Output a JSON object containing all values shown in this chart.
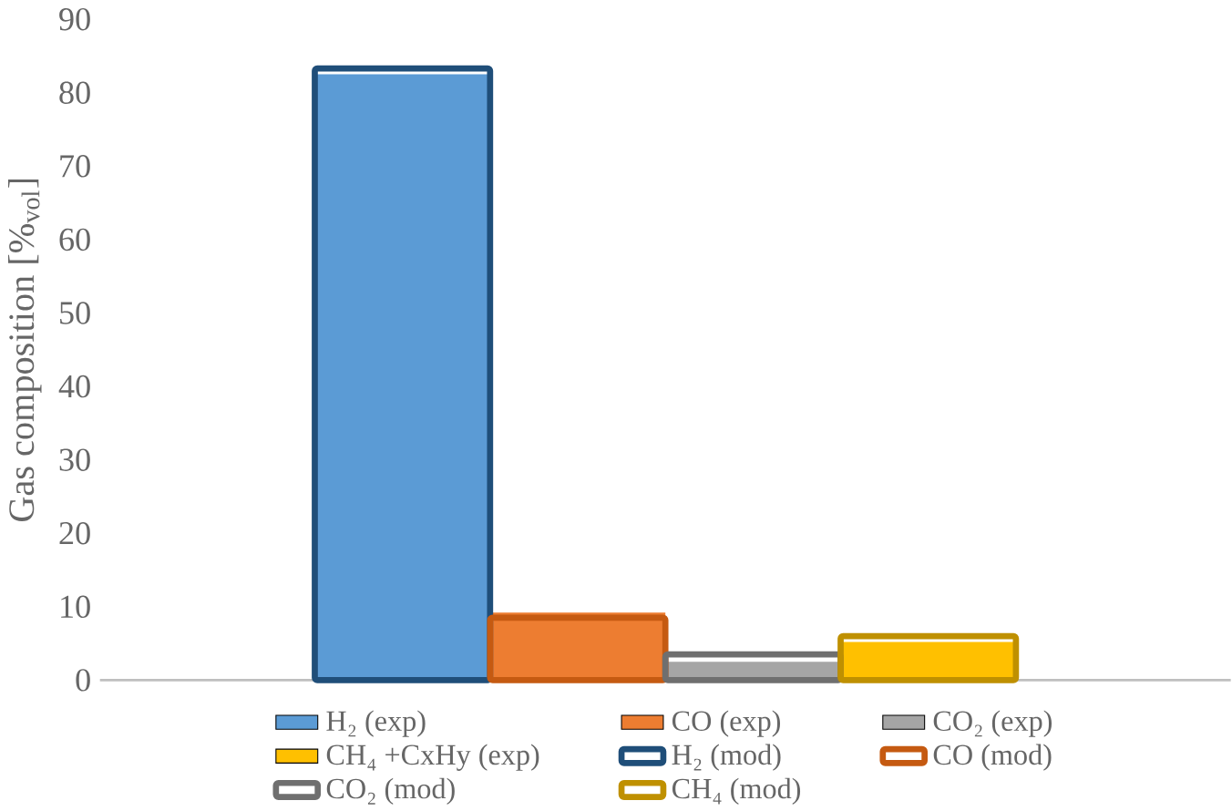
{
  "chart_data": {
    "type": "bar",
    "ylabel": "Gas composition [%$_{vol}$]",
    "categories": [
      null
    ],
    "ylim": [
      0,
      90
    ],
    "yticks": [
      0,
      10,
      20,
      30,
      40,
      50,
      60,
      70,
      80,
      90
    ],
    "legend": "bottom",
    "grid": false,
    "series": [
      {
        "name": "H₂ (exp)",
        "color": "#5b9bd5",
        "values": [
          82.5
        ]
      },
      {
        "name": "CO (exp)",
        "color": "#ed7d31",
        "values": [
          9.2
        ]
      },
      {
        "name": "CO₂ (exp)",
        "color": "#a5a5a5",
        "values": [
          2.5
        ]
      },
      {
        "name": "CH₄ +CxHy (exp)",
        "color": "#ffc000",
        "values": [
          5.2
        ]
      },
      {
        "name": "H₂ (mod)",
        "color": "#1f4e79",
        "values": [
          83.3
        ]
      },
      {
        "name": "CO (mod)",
        "color": "#c55a11",
        "values": [
          8.5
        ]
      },
      {
        "name": "CO₂ (mod)",
        "color": "#6f6f6f",
        "values": [
          3.5
        ]
      },
      {
        "name": "CH₄ (mod)",
        "color": "#bf9000",
        "values": [
          6.0
        ]
      }
    ]
  }
}
